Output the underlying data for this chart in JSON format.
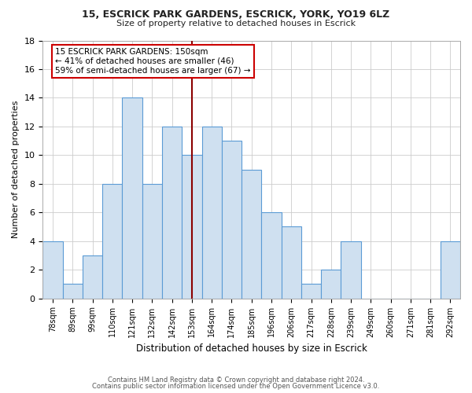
{
  "title": "15, ESCRICK PARK GARDENS, ESCRICK, YORK, YO19 6LZ",
  "subtitle": "Size of property relative to detached houses in Escrick",
  "xlabel": "Distribution of detached houses by size in Escrick",
  "ylabel": "Number of detached properties",
  "categories": [
    "78sqm",
    "89sqm",
    "99sqm",
    "110sqm",
    "121sqm",
    "132sqm",
    "142sqm",
    "153sqm",
    "164sqm",
    "174sqm",
    "185sqm",
    "196sqm",
    "206sqm",
    "217sqm",
    "228sqm",
    "239sqm",
    "249sqm",
    "260sqm",
    "271sqm",
    "281sqm",
    "292sqm"
  ],
  "values": [
    4,
    1,
    3,
    8,
    14,
    8,
    12,
    10,
    12,
    11,
    9,
    6,
    5,
    1,
    2,
    4,
    0,
    0,
    0,
    0,
    4
  ],
  "bar_color": "#cfe0f0",
  "bar_edge_color": "#5b9bd5",
  "highlight_bar_index": 7,
  "highlight_line_color": "#8b0000",
  "ylim": [
    0,
    18
  ],
  "yticks": [
    0,
    2,
    4,
    6,
    8,
    10,
    12,
    14,
    16,
    18
  ],
  "annotation_title": "15 ESCRICK PARK GARDENS: 150sqm",
  "annotation_line1": "← 41% of detached houses are smaller (46)",
  "annotation_line2": "59% of semi-detached houses are larger (67) →",
  "footer_line1": "Contains HM Land Registry data © Crown copyright and database right 2024.",
  "footer_line2": "Contains public sector information licensed under the Open Government Licence v3.0.",
  "background_color": "#ffffff",
  "grid_color": "#cccccc"
}
